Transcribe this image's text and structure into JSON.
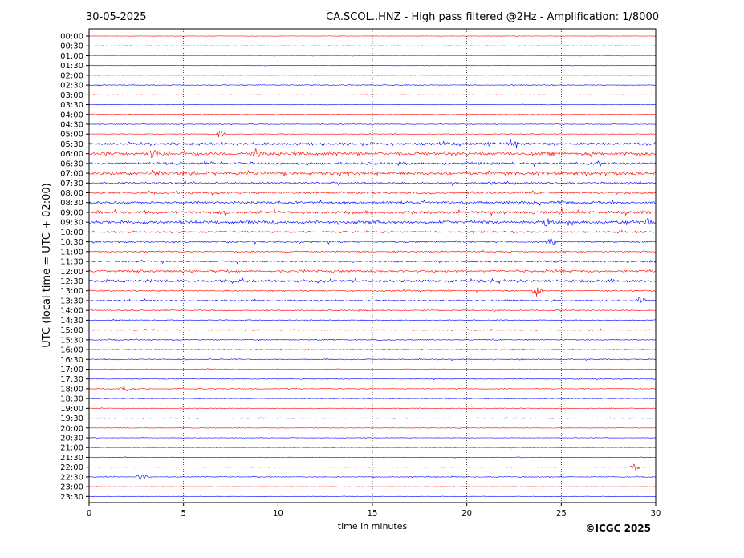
{
  "chart_data": {
    "type": "line",
    "title_left": "30-05-2025",
    "title": "CA.SCOL..HNZ - High pass filtered @2Hz - Amplification: 1/8000",
    "xlabel": "time in minutes",
    "ylabel": "UTC (local time = UTC + 02:00)",
    "xlim": [
      0,
      30
    ],
    "xticks": [
      0,
      5,
      10,
      15,
      20,
      25,
      30
    ],
    "vertical_grid": [
      5,
      10,
      15,
      20,
      25
    ],
    "row_labels": [
      "00:00",
      "00:30",
      "01:00",
      "01:30",
      "02:00",
      "02:30",
      "03:00",
      "03:30",
      "04:00",
      "04:30",
      "05:00",
      "05:30",
      "06:00",
      "06:30",
      "07:00",
      "07:30",
      "08:00",
      "08:30",
      "09:00",
      "09:30",
      "10:00",
      "10:30",
      "11:00",
      "11:30",
      "12:00",
      "12:30",
      "13:00",
      "13:30",
      "14:00",
      "14:30",
      "15:00",
      "15:30",
      "16:00",
      "16:30",
      "17:00",
      "17:30",
      "18:00",
      "18:30",
      "19:00",
      "19:30",
      "20:00",
      "20:30",
      "21:00",
      "21:30",
      "22:00",
      "22:30",
      "23:00",
      "23:30"
    ],
    "row_colors": [
      "#ff0000",
      "#0000ff"
    ],
    "row_noise": [
      0.3,
      0.3,
      0.4,
      0.3,
      0.3,
      0.6,
      0.4,
      0.4,
      0.4,
      0.5,
      0.6,
      2.0,
      2.5,
      1.8,
      2.5,
      1.4,
      1.6,
      1.8,
      2.3,
      2.3,
      1.3,
      1.3,
      1.0,
      1.2,
      1.7,
      2.0,
      1.0,
      1.2,
      0.9,
      0.8,
      0.8,
      0.7,
      0.6,
      0.8,
      0.6,
      0.6,
      0.6,
      0.5,
      0.5,
      0.6,
      0.4,
      0.4,
      0.5,
      0.4,
      0.3,
      0.6,
      0.3,
      0.3
    ],
    "events": [
      {
        "row": 10,
        "minute": 6.9,
        "amplitude": 5
      },
      {
        "row": 11,
        "minute": 22.4,
        "amplitude": 5
      },
      {
        "row": 12,
        "minute": 3.4,
        "amplitude": 6
      },
      {
        "row": 12,
        "minute": 8.8,
        "amplitude": 6
      },
      {
        "row": 19,
        "minute": 24.2,
        "amplitude": 5
      },
      {
        "row": 19,
        "minute": 29.6,
        "amplitude": 4
      },
      {
        "row": 21,
        "minute": 24.5,
        "amplitude": 5
      },
      {
        "row": 26,
        "minute": 23.7,
        "amplitude": 7
      },
      {
        "row": 27,
        "minute": 29.2,
        "amplitude": 5
      },
      {
        "row": 36,
        "minute": 1.9,
        "amplitude": 5
      },
      {
        "row": 44,
        "minute": 28.9,
        "amplitude": 5
      },
      {
        "row": 45,
        "minute": 2.8,
        "amplitude": 5
      }
    ],
    "grid": "vertical dotted",
    "copyright": "©ICGC 2025"
  }
}
